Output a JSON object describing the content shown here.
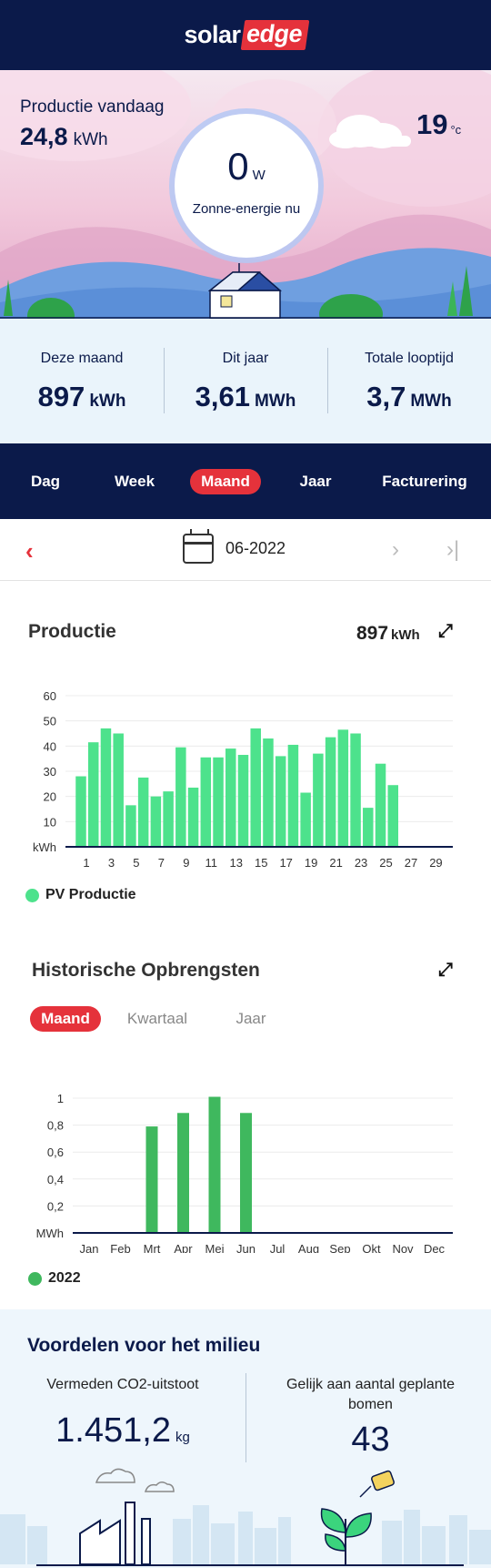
{
  "brand": {
    "solar": "solar",
    "edge": "edge"
  },
  "hero": {
    "production_label": "Productie vandaag",
    "production_value": "24,8",
    "production_unit": "kWh",
    "temperature_value": "19",
    "temperature_unit": "°c",
    "current_power_value": "0",
    "current_power_unit": "W",
    "current_power_label": "Zonne-energie nu"
  },
  "stats": [
    {
      "label": "Deze maand",
      "value": "897",
      "unit": "kWh"
    },
    {
      "label": "Dit jaar",
      "value": "3,61",
      "unit": "MWh"
    },
    {
      "label": "Totale looptijd",
      "value": "3,7",
      "unit": "MWh"
    }
  ],
  "tabs": [
    {
      "label": "Dag",
      "active": false
    },
    {
      "label": "Week",
      "active": false
    },
    {
      "label": "Maand",
      "active": true
    },
    {
      "label": "Jaar",
      "active": false
    },
    {
      "label": "Facturering",
      "active": false
    }
  ],
  "date_nav": {
    "date": "06-2022",
    "prev_glyph": "‹",
    "next_glyph": "›",
    "last_glyph": "›|"
  },
  "production": {
    "title": "Productie",
    "total_value": "897",
    "total_unit": "kWh",
    "legend": "PV Productie"
  },
  "history": {
    "title": "Historische Opbrengsten",
    "tabs": [
      {
        "label": "Maand",
        "active": true
      },
      {
        "label": "Kwartaal",
        "active": false
      },
      {
        "label": "Jaar",
        "active": false
      }
    ],
    "legend": "2022"
  },
  "environment": {
    "title": "Voordelen voor het milieu",
    "co2_label": "Vermeden CO2-uitstoot",
    "co2_value": "1.451,2",
    "co2_unit": "kg",
    "trees_label": "Gelijk aan aantal geplante bomen",
    "trees_value": "43"
  },
  "colors": {
    "navy": "#0b1a4a",
    "accent": "#e5323b",
    "pv_green": "#4de28c",
    "history_green": "#3fb85e"
  },
  "chart_data": [
    {
      "type": "bar",
      "title": "Productie",
      "ylabel": "kWh",
      "ylim": [
        0,
        60
      ],
      "yticks": [
        10,
        20,
        30,
        40,
        50,
        60
      ],
      "x_tick_labels": [
        "1",
        "3",
        "5",
        "7",
        "9",
        "11",
        "13",
        "15",
        "17",
        "19",
        "21",
        "23",
        "25",
        "27",
        "29"
      ],
      "x": [
        1,
        2,
        3,
        4,
        5,
        6,
        7,
        8,
        9,
        10,
        11,
        12,
        13,
        14,
        15,
        16,
        17,
        18,
        19,
        20,
        21,
        22,
        23,
        24,
        25,
        26,
        27,
        28,
        29,
        30
      ],
      "series": [
        {
          "name": "PV Productie",
          "values": [
            28,
            41.5,
            47,
            45,
            16.5,
            27.5,
            20,
            22,
            39.5,
            23.5,
            35.5,
            35.5,
            39,
            36.5,
            47,
            43,
            36,
            40.5,
            21.5,
            37,
            43.5,
            46.5,
            45,
            15.5,
            33,
            24.5,
            0,
            0,
            0,
            0
          ]
        }
      ],
      "grid": true,
      "legend_position": "bottom-left"
    },
    {
      "type": "bar",
      "title": "Historische Opbrengsten",
      "ylabel": "MWh",
      "ylim": [
        0,
        1
      ],
      "yticks": [
        "0,2",
        "0,4",
        "0,6",
        "0,8",
        "1"
      ],
      "categories": [
        "Jan",
        "Feb",
        "Mrt",
        "Apr",
        "Mei",
        "Jun",
        "Jul",
        "Aug",
        "Sep",
        "Okt",
        "Nov",
        "Dec"
      ],
      "series": [
        {
          "name": "2022",
          "values": [
            0,
            0,
            0.79,
            0.89,
            1.01,
            0.89,
            0,
            0,
            0,
            0,
            0,
            0
          ]
        }
      ],
      "grid": true,
      "legend_position": "bottom-left"
    }
  ]
}
